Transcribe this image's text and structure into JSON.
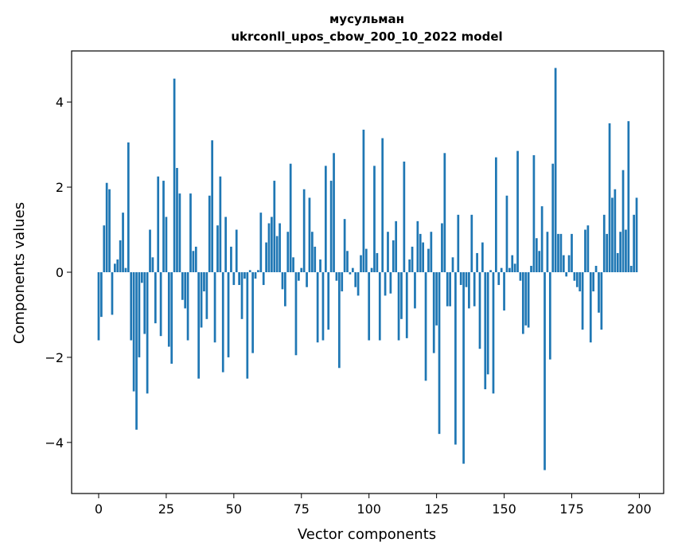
{
  "chart_data": {
    "type": "bar",
    "title": "мусульман",
    "subtitle": "ukrconll_upos_cbow_200_10_2022 model",
    "xlabel": "Vector components",
    "ylabel": "Components values",
    "xlim": [
      -10,
      209
    ],
    "ylim": [
      -5.2,
      5.2
    ],
    "xticks": [
      0,
      25,
      50,
      75,
      100,
      125,
      150,
      175,
      200
    ],
    "yticks": [
      -4,
      -2,
      0,
      2,
      4
    ],
    "xtick_labels": [
      "0",
      "25",
      "50",
      "75",
      "100",
      "125",
      "150",
      "175",
      "200"
    ],
    "ytick_labels": [
      "−4",
      "−2",
      "0",
      "2",
      "4"
    ],
    "bar_color": "#1f77b4",
    "grid": false,
    "values": [
      -1.6,
      -1.05,
      1.1,
      2.1,
      1.95,
      -1.0,
      0.2,
      0.3,
      0.75,
      1.4,
      0.1,
      3.05,
      -1.6,
      -2.8,
      -3.7,
      -2.0,
      -0.25,
      -1.45,
      -2.85,
      1.0,
      0.35,
      -1.2,
      2.25,
      -1.5,
      2.15,
      1.3,
      -1.75,
      -2.15,
      4.55,
      2.45,
      1.85,
      -0.65,
      -0.85,
      -1.6,
      1.85,
      0.5,
      0.6,
      -2.5,
      -1.3,
      -0.45,
      -1.1,
      1.8,
      3.1,
      -1.65,
      1.1,
      2.25,
      -2.35,
      1.3,
      -2.0,
      0.6,
      -0.3,
      1.0,
      -0.3,
      -1.1,
      -0.15,
      -2.5,
      0.05,
      -1.9,
      -0.15,
      0.05,
      1.4,
      -0.3,
      0.7,
      1.15,
      1.3,
      2.15,
      0.85,
      1.15,
      -0.4,
      -0.8,
      0.95,
      2.55,
      0.35,
      -1.95,
      -0.2,
      0.1,
      1.95,
      -0.35,
      1.75,
      0.95,
      0.6,
      -1.65,
      0.3,
      -1.6,
      2.5,
      -1.35,
      2.15,
      2.8,
      -0.2,
      -2.25,
      -0.45,
      1.25,
      0.5,
      -0.05,
      0.1,
      -0.35,
      -0.55,
      0.4,
      3.35,
      0.55,
      -1.6,
      0.1,
      2.5,
      0.45,
      -1.6,
      3.15,
      -0.55,
      0.95,
      -0.5,
      0.75,
      1.2,
      -1.6,
      -1.1,
      2.6,
      -1.55,
      0.3,
      0.6,
      -0.85,
      1.2,
      0.9,
      0.7,
      -2.55,
      0.55,
      0.95,
      -1.9,
      -1.25,
      -3.8,
      1.15,
      2.8,
      -0.8,
      -0.8,
      0.35,
      -4.05,
      1.35,
      -0.3,
      -4.5,
      -0.35,
      -0.85,
      1.35,
      -0.8,
      0.45,
      -1.8,
      0.7,
      -2.75,
      -2.4,
      0.05,
      -2.85,
      2.7,
      -0.3,
      0.1,
      -0.9,
      1.8,
      0.1,
      0.4,
      0.2,
      2.85,
      -0.2,
      -1.45,
      -1.25,
      -1.3,
      0.15,
      2.75,
      0.8,
      0.5,
      1.55,
      -4.65,
      0.95,
      -2.05,
      2.55,
      4.8,
      0.9,
      0.9,
      0.4,
      -0.1,
      0.4,
      0.9,
      -0.2,
      -0.35,
      -0.45,
      -1.35,
      1.0,
      1.1,
      -1.65,
      -0.45,
      0.15,
      -0.95,
      -1.35,
      1.35,
      0.9,
      3.5,
      1.75,
      1.95,
      0.45,
      0.95,
      2.4,
      1.0,
      3.55,
      0.15,
      1.35,
      1.75
    ]
  }
}
